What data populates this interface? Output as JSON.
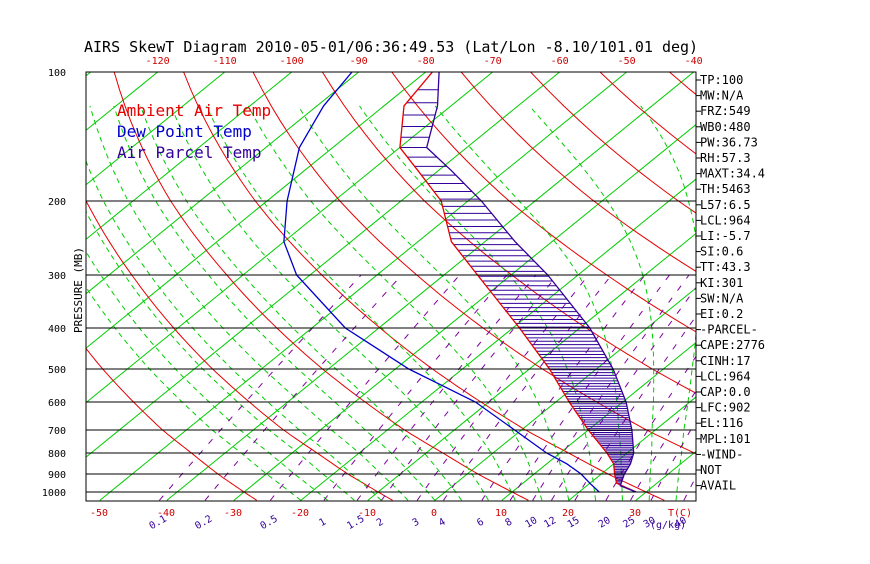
{
  "chart_data": {
    "type": "skewt",
    "title": "AIRS SkewT Diagram 2010-05-01/06:36:49.53 (Lat/Lon -8.10/101.01 deg)",
    "ylabel": "PRESSURE (MB)",
    "xlabel_bottom": "T(C)",
    "mixing_ratio_unit": "(g/kg)",
    "pressure_ticks": [
      100,
      200,
      300,
      400,
      500,
      600,
      700,
      800,
      900,
      1000
    ],
    "pressure_lines": [
      100,
      200,
      300,
      400,
      500,
      600,
      700,
      800,
      900,
      1000
    ],
    "top_temp_ticks": [
      -120,
      -110,
      -100,
      -90,
      -80,
      -70,
      -60,
      -50,
      -40
    ],
    "bottom_temp_ticks": [
      -50,
      -40,
      -30,
      -20,
      -10,
      0,
      10,
      20,
      30
    ],
    "mixing_ratio_labels": [
      "0.1",
      "0.2",
      "0.5",
      "1",
      "1.5",
      "2",
      "3",
      "4",
      "6",
      "8",
      "10",
      "12",
      "15",
      "20",
      "25",
      "30",
      "40"
    ],
    "legend": [
      {
        "name": "Ambient Air Temp",
        "color": "#e60000"
      },
      {
        "name": "Dew Point Temp",
        "color": "#0000cc"
      },
      {
        "name": "Air Parcel Temp",
        "color": "#330099"
      }
    ],
    "series": [
      {
        "name": "Ambient Air Temp",
        "points": [
          [
            1000,
            28.5
          ],
          [
            950,
            24
          ],
          [
            900,
            22
          ],
          [
            850,
            20
          ],
          [
            800,
            17
          ],
          [
            700,
            10
          ],
          [
            600,
            2
          ],
          [
            500,
            -7
          ],
          [
            400,
            -19
          ],
          [
            300,
            -35
          ],
          [
            250,
            -45
          ],
          [
            200,
            -54
          ],
          [
            170,
            -63
          ],
          [
            150,
            -70
          ],
          [
            120,
            -77
          ],
          [
            100,
            -79
          ]
        ]
      },
      {
        "name": "Dew Point Temp",
        "points": [
          [
            1000,
            23
          ],
          [
            950,
            20
          ],
          [
            900,
            17
          ],
          [
            850,
            13
          ],
          [
            800,
            8
          ],
          [
            700,
            -1
          ],
          [
            600,
            -12
          ],
          [
            500,
            -28
          ],
          [
            400,
            -45
          ],
          [
            300,
            -62
          ],
          [
            250,
            -70
          ],
          [
            200,
            -77
          ],
          [
            150,
            -85
          ],
          [
            120,
            -89
          ],
          [
            100,
            -91
          ]
        ]
      },
      {
        "name": "Air Parcel Temp",
        "points": [
          [
            1000,
            28.5
          ],
          [
            964,
            25
          ],
          [
            902,
            23.5
          ],
          [
            850,
            22.5
          ],
          [
            800,
            21
          ],
          [
            700,
            16.5
          ],
          [
            600,
            10.5
          ],
          [
            500,
            2.5
          ],
          [
            400,
            -8.5
          ],
          [
            300,
            -24.5
          ],
          [
            250,
            -35.5
          ],
          [
            200,
            -48
          ],
          [
            170,
            -58
          ],
          [
            150,
            -66
          ],
          [
            120,
            -72
          ],
          [
            100,
            -78
          ]
        ]
      }
    ],
    "indices": [
      "TP:100",
      "MW:N/A",
      "FRZ:549",
      "WB0:480",
      "PW:36.73",
      "RH:57.3",
      "MAXT:34.4",
      "TH:5463",
      "L57:6.5",
      "LCL:964",
      "LI:-5.7",
      "SI:0.6",
      "TT:43.3",
      "KI:301",
      "SW:N/A",
      "EI:0.2",
      "-PARCEL-",
      "CAPE:2776",
      "CINH:17",
      "LCL:964",
      "CAP:0.0",
      "LFC:902",
      "EL:116",
      "MPL:101",
      "-WIND-",
      "NOT",
      "AVAIL"
    ],
    "colors": {
      "dry_adiabat": "#e60000",
      "moist_adiabat": "#00cc00",
      "isotherm": "#00cc00",
      "mixing_ratio": "#8000a0",
      "temperature": "#e60000",
      "dewpoint": "#0000cc",
      "parcel": "#330099",
      "grid": "#000000"
    }
  }
}
